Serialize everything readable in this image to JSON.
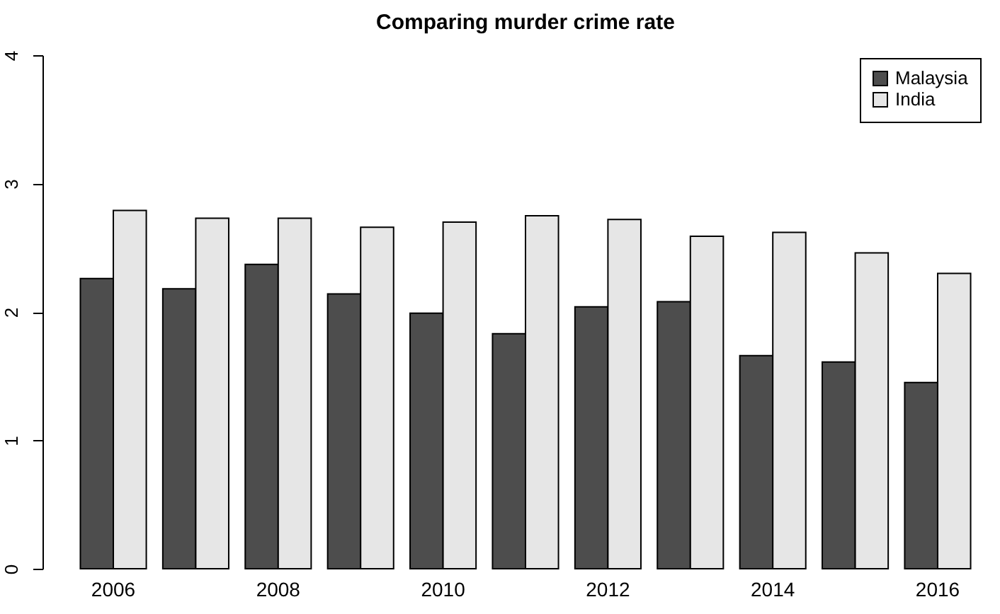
{
  "chart_data": {
    "type": "bar",
    "title": "Comparing murder crime rate",
    "categories": [
      "2006",
      null,
      "2008",
      null,
      "2010",
      null,
      "2012",
      null,
      "2014",
      null,
      "2016"
    ],
    "series": [
      {
        "name": "Malaysia",
        "color": "#4d4d4d",
        "values": [
          2.26,
          2.18,
          2.37,
          2.14,
          1.99,
          1.83,
          2.04,
          2.08,
          1.66,
          1.61,
          1.45
        ]
      },
      {
        "name": "India",
        "color": "#e6e6e6",
        "values": [
          2.79,
          2.73,
          2.73,
          2.66,
          2.7,
          2.75,
          2.72,
          2.59,
          2.62,
          2.46,
          2.3
        ]
      }
    ],
    "ylim": [
      0,
      4
    ],
    "yticks": [
      0,
      1,
      2,
      3,
      4
    ],
    "grid": false,
    "legend": "top right"
  }
}
